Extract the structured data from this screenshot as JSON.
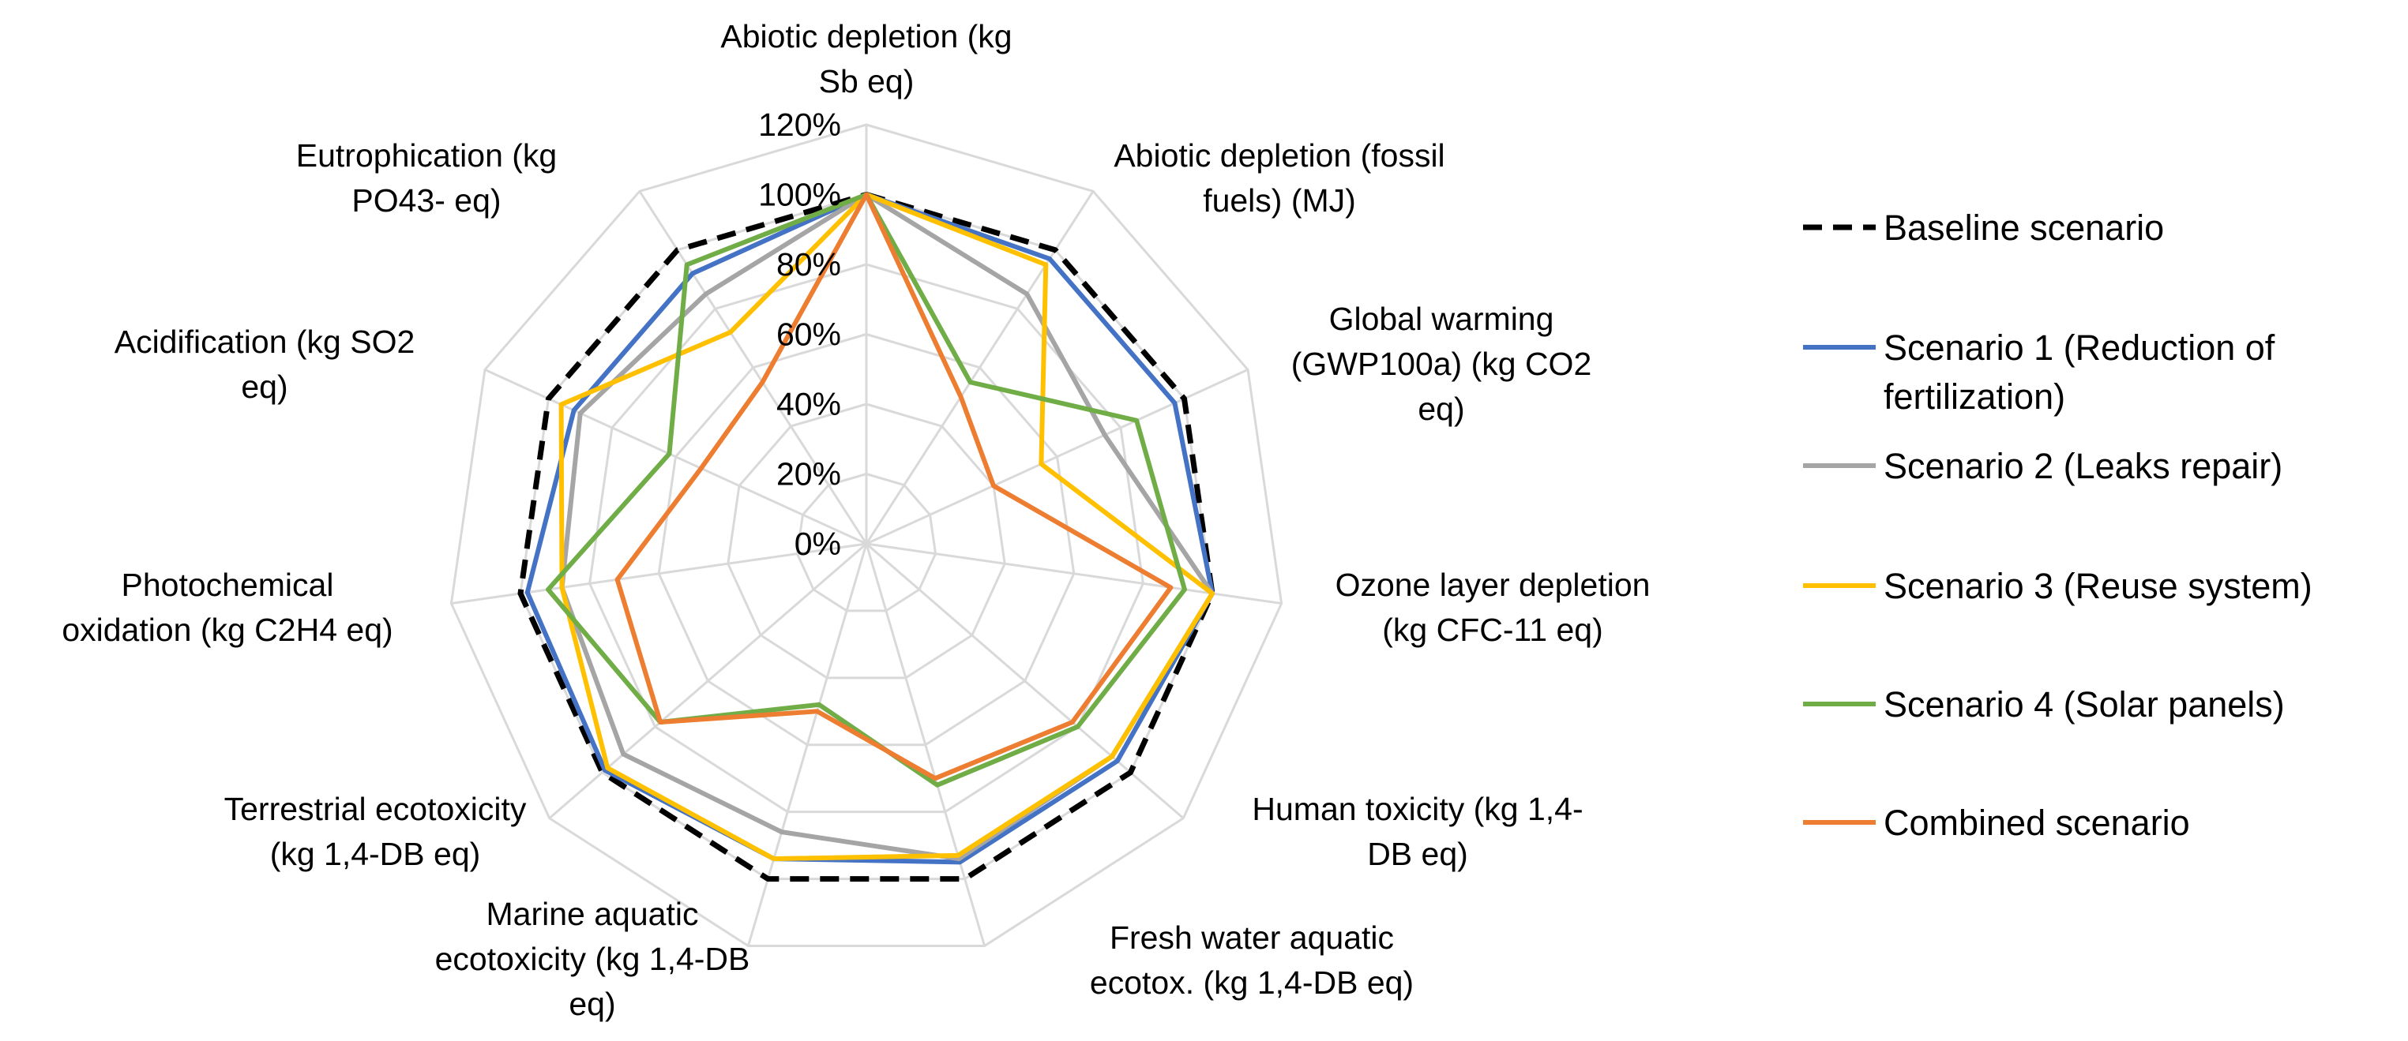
{
  "chart_data": {
    "type": "radar",
    "title": "",
    "axes": [
      {
        "lines": [
          "Abiotic depletion (kg",
          "Sb eq)"
        ]
      },
      {
        "lines": [
          "Abiotic depletion (fossil",
          "fuels) (MJ)"
        ]
      },
      {
        "lines": [
          "Global warming",
          "(GWP100a) (kg CO2",
          "eq)"
        ]
      },
      {
        "lines": [
          "Ozone layer depletion",
          "(kg CFC-11 eq)"
        ]
      },
      {
        "lines": [
          "Human toxicity (kg 1,4-",
          "DB eq)"
        ]
      },
      {
        "lines": [
          "Fresh water aquatic",
          "ecotox. (kg 1,4-DB eq)"
        ]
      },
      {
        "lines": [
          "Marine aquatic",
          "ecotoxicity (kg 1,4-DB",
          "eq)"
        ]
      },
      {
        "lines": [
          "Terrestrial ecotoxicity",
          "(kg 1,4-DB eq)"
        ]
      },
      {
        "lines": [
          "Photochemical",
          "oxidation (kg C2H4 eq)"
        ]
      },
      {
        "lines": [
          "Acidification (kg SO2",
          "eq)"
        ]
      },
      {
        "lines": [
          "Eutrophication (kg",
          "PO43- eq)"
        ]
      }
    ],
    "ticks": [
      "0%",
      "20%",
      "40%",
      "60%",
      "80%",
      "100%",
      "120%"
    ],
    "tick_values": [
      0,
      20,
      40,
      60,
      80,
      100,
      120
    ],
    "rmax": 120,
    "series": [
      {
        "name": "Baseline scenario",
        "color": "#000000",
        "dash": true,
        "values": [
          100,
          100,
          100,
          100,
          100,
          100,
          100,
          100,
          100,
          100,
          100
        ]
      },
      {
        "name": "Scenario 1 (Reduction of fertilization)",
        "name_lines": [
          "Scenario 1 (Reduction of",
          "fertilization)"
        ],
        "color": "#4472C4",
        "dash": false,
        "values": [
          100,
          97,
          97,
          100,
          95,
          95,
          94,
          99,
          98,
          92,
          92
        ]
      },
      {
        "name": "Scenario 2 (Leaks repair)",
        "color": "#A5A5A5",
        "dash": false,
        "values": [
          100,
          85,
          75,
          100,
          93,
          94,
          86,
          92,
          88,
          90,
          85
        ]
      },
      {
        "name": "Scenario 3 (Reuse system)",
        "color": "#FFC000",
        "dash": false,
        "values": [
          100,
          95,
          55,
          100,
          93,
          93,
          94,
          98,
          88,
          96,
          72
        ]
      },
      {
        "name": "Scenario 4 (Solar panels)",
        "color": "#70AD47",
        "dash": false,
        "values": [
          100,
          55,
          85,
          92,
          80,
          72,
          48,
          78,
          92,
          62,
          95
        ]
      },
      {
        "name": "Combined scenario",
        "color": "#ED7D31",
        "dash": false,
        "values": [
          100,
          50,
          40,
          88,
          78,
          70,
          50,
          78,
          72,
          52,
          55
        ]
      }
    ]
  }
}
